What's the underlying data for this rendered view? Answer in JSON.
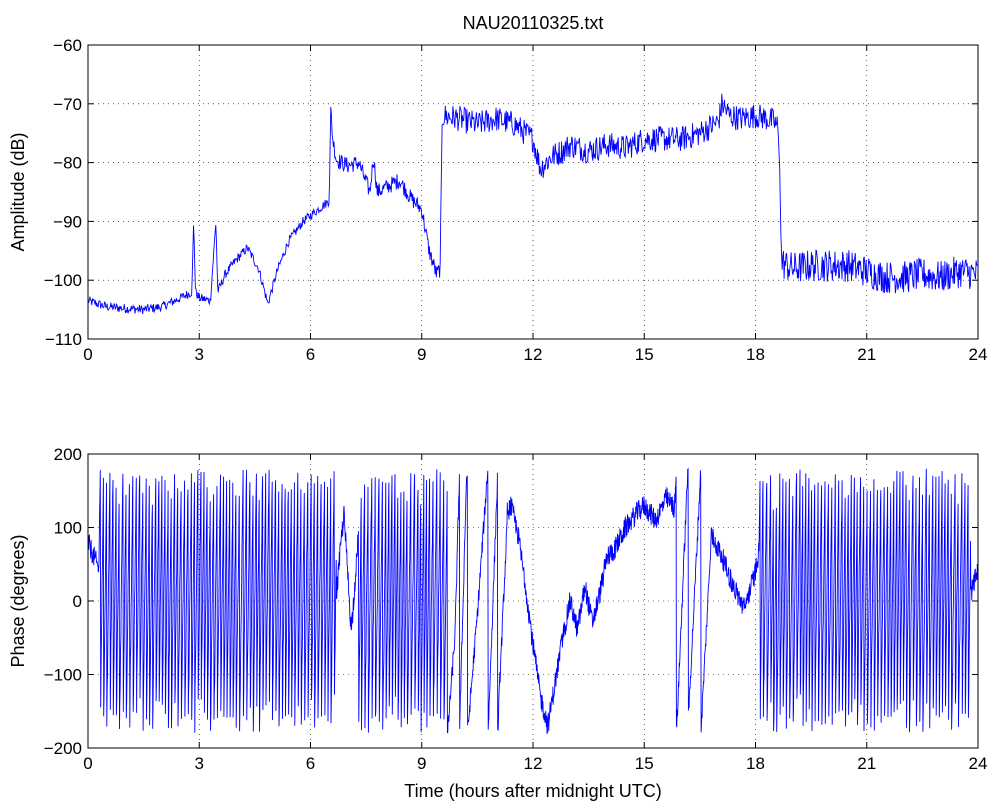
{
  "chart_data": [
    {
      "type": "line",
      "title": "NAU20110325.txt",
      "xlabel": "",
      "ylabel": "Amplitude (dB)",
      "xlim": [
        0,
        24
      ],
      "ylim": [
        -110,
        -60
      ],
      "xticks": [
        0,
        3,
        6,
        9,
        12,
        15,
        18,
        21,
        24
      ],
      "xtick_labels": [
        "0",
        "3",
        "6",
        "9",
        "12",
        "15",
        "18",
        "21",
        "24"
      ],
      "yticks": [
        -110,
        -100,
        -90,
        -80,
        -70,
        -60
      ],
      "ytick_labels": [
        "−110",
        "−100",
        "−90",
        "−80",
        "−70",
        "−60"
      ],
      "grid": true,
      "line_color": "#0000ff",
      "series": [
        {
          "x": [
            0,
            0.5,
            1,
            1.5,
            2,
            2.5,
            2.8,
            2.85,
            2.9,
            3,
            3.3,
            3.45,
            3.5,
            3.7,
            4,
            4.3,
            4.6,
            4.85,
            5.1,
            5.4,
            5.8,
            6.1,
            6.4,
            6.5,
            6.55,
            6.6,
            6.7,
            7.0,
            7.3,
            7.6,
            7.7,
            7.8,
            8.1,
            8.4,
            8.7,
            9.0,
            9.2,
            9.4,
            9.5,
            9.55,
            10,
            10.5,
            11,
            11.5,
            12.0,
            12.2,
            12.5,
            12.8,
            13,
            13.5,
            14,
            14.5,
            15,
            15.5,
            16,
            16.5,
            17.0,
            17.1,
            17.3,
            17.6,
            18.0,
            18.3,
            18.5,
            18.6,
            18.65,
            18.7,
            19,
            19.5,
            20,
            20.5,
            21,
            21.5,
            22,
            22.5,
            23,
            23.5,
            24
          ],
          "y": [
            -103.5,
            -104.5,
            -104.8,
            -105,
            -104.5,
            -103,
            -102,
            -90,
            -102,
            -103,
            -103.5,
            -90,
            -102,
            -99,
            -96.5,
            -94.5,
            -98,
            -104,
            -98.5,
            -93.5,
            -90,
            -88.5,
            -87,
            -86.5,
            -71,
            -76,
            -79.5,
            -80.5,
            -80,
            -85,
            -79,
            -85,
            -84,
            -83,
            -86,
            -88,
            -95,
            -99,
            -98,
            -72,
            -72.5,
            -73.5,
            -72.5,
            -73.5,
            -76,
            -81,
            -79,
            -78,
            -77,
            -78,
            -77,
            -77.5,
            -76,
            -76,
            -76,
            -75,
            -73,
            -70,
            -72,
            -72.5,
            -72,
            -72.5,
            -73,
            -74,
            -80,
            -97,
            -98,
            -97.5,
            -97.5,
            -97.5,
            -98.5,
            -99.5,
            -99.5,
            -99,
            -99.5,
            -98.5,
            -99
          ]
        }
      ]
    },
    {
      "type": "line",
      "title": "",
      "xlabel": "Time (hours after midnight UTC)",
      "ylabel": "Phase (degrees)",
      "xlim": [
        0,
        24
      ],
      "ylim": [
        -200,
        200
      ],
      "xticks": [
        0,
        3,
        6,
        9,
        12,
        15,
        18,
        21,
        24
      ],
      "xtick_labels": [
        "0",
        "3",
        "6",
        "9",
        "12",
        "15",
        "18",
        "21",
        "24"
      ],
      "yticks": [
        -200,
        -100,
        0,
        100,
        200
      ],
      "ytick_labels": [
        "−200",
        "−100",
        "0",
        "100",
        "200"
      ],
      "grid": true,
      "line_color": "#0000ff",
      "wrap_range": [
        -180,
        180
      ],
      "series": [
        {
          "x": [
            0,
            0.4,
            0.8,
            1.2,
            1.6,
            2,
            2.4,
            2.8,
            3.2,
            3.6,
            4,
            4.4,
            4.8,
            5.2,
            5.6,
            6,
            6.4,
            6.7,
            6.9,
            7.1,
            7.4,
            7.7,
            8,
            8.3,
            8.6,
            8.9,
            9.2,
            9.5,
            9.7,
            9.9,
            10.2,
            10.5,
            10.8,
            11.1,
            11.4,
            11.6,
            11.8,
            12.0,
            12.2,
            12.4,
            12.6,
            12.8,
            13.0,
            13.2,
            13.4,
            13.6,
            13.8,
            14.0,
            14.2,
            14.5,
            14.8,
            15.0,
            15.3,
            15.6,
            15.9,
            16.2,
            16.5,
            16.8,
            17.1,
            17.4,
            17.7,
            18.0,
            18.2,
            18.4,
            18.8,
            19.2,
            19.6,
            20,
            20.4,
            20.8,
            21.2,
            21.6,
            22,
            22.4,
            22.8,
            23.2,
            23.6,
            24
          ],
          "y": [
            80,
            30,
            60,
            10,
            -50,
            20,
            60,
            -20,
            40,
            0,
            70,
            -40,
            30,
            -10,
            60,
            20,
            -30,
            10,
            120,
            -40,
            160,
            60,
            -70,
            30,
            100,
            -30,
            140,
            30,
            -40,
            -100,
            170,
            60,
            -20,
            100,
            130,
            90,
            20,
            -60,
            -130,
            -170,
            -110,
            -50,
            0,
            -40,
            20,
            -30,
            10,
            60,
            70,
            100,
            120,
            130,
            110,
            140,
            120,
            150,
            130,
            90,
            60,
            20,
            -10,
            40,
            100,
            -20,
            60,
            -40,
            110,
            20,
            -60,
            80,
            10,
            -70,
            50,
            0,
            -40,
            60,
            -20,
            40
          ]
        }
      ]
    }
  ]
}
